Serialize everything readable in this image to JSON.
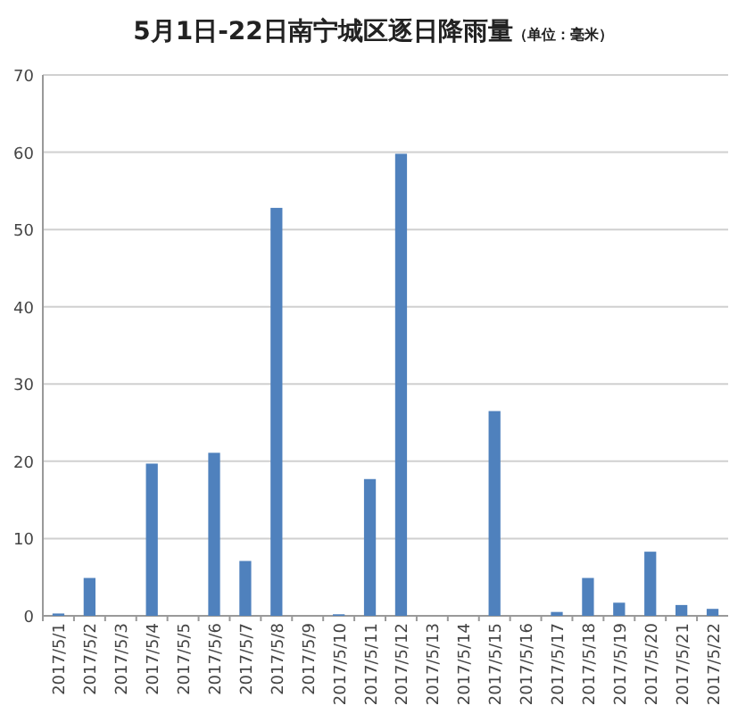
{
  "chart_data": {
    "type": "bar",
    "title": "5月1日-22日南宁城区逐日降雨量",
    "subtitle": "（单位：毫米）",
    "categories": [
      "2017/5/1",
      "2017/5/2",
      "2017/5/3",
      "2017/5/4",
      "2017/5/5",
      "2017/5/6",
      "2017/5/7",
      "2017/5/8",
      "2017/5/9",
      "2017/5/10",
      "2017/5/11",
      "2017/5/12",
      "2017/5/13",
      "2017/5/14",
      "2017/5/15",
      "2017/5/16",
      "2017/5/17",
      "2017/5/18",
      "2017/5/19",
      "2017/5/20",
      "2017/5/21",
      "2017/5/22"
    ],
    "values": [
      0.3,
      4.9,
      0,
      19.7,
      0,
      21.1,
      7.1,
      52.8,
      0,
      0.2,
      17.7,
      59.8,
      0,
      0,
      26.5,
      0,
      0.5,
      4.9,
      1.7,
      8.3,
      1.4,
      0.9
    ],
    "color": "#4f81bd",
    "ylim": [
      0,
      70
    ],
    "yticks": [
      0,
      10,
      20,
      30,
      40,
      50,
      60,
      70
    ],
    "grid": "y"
  }
}
